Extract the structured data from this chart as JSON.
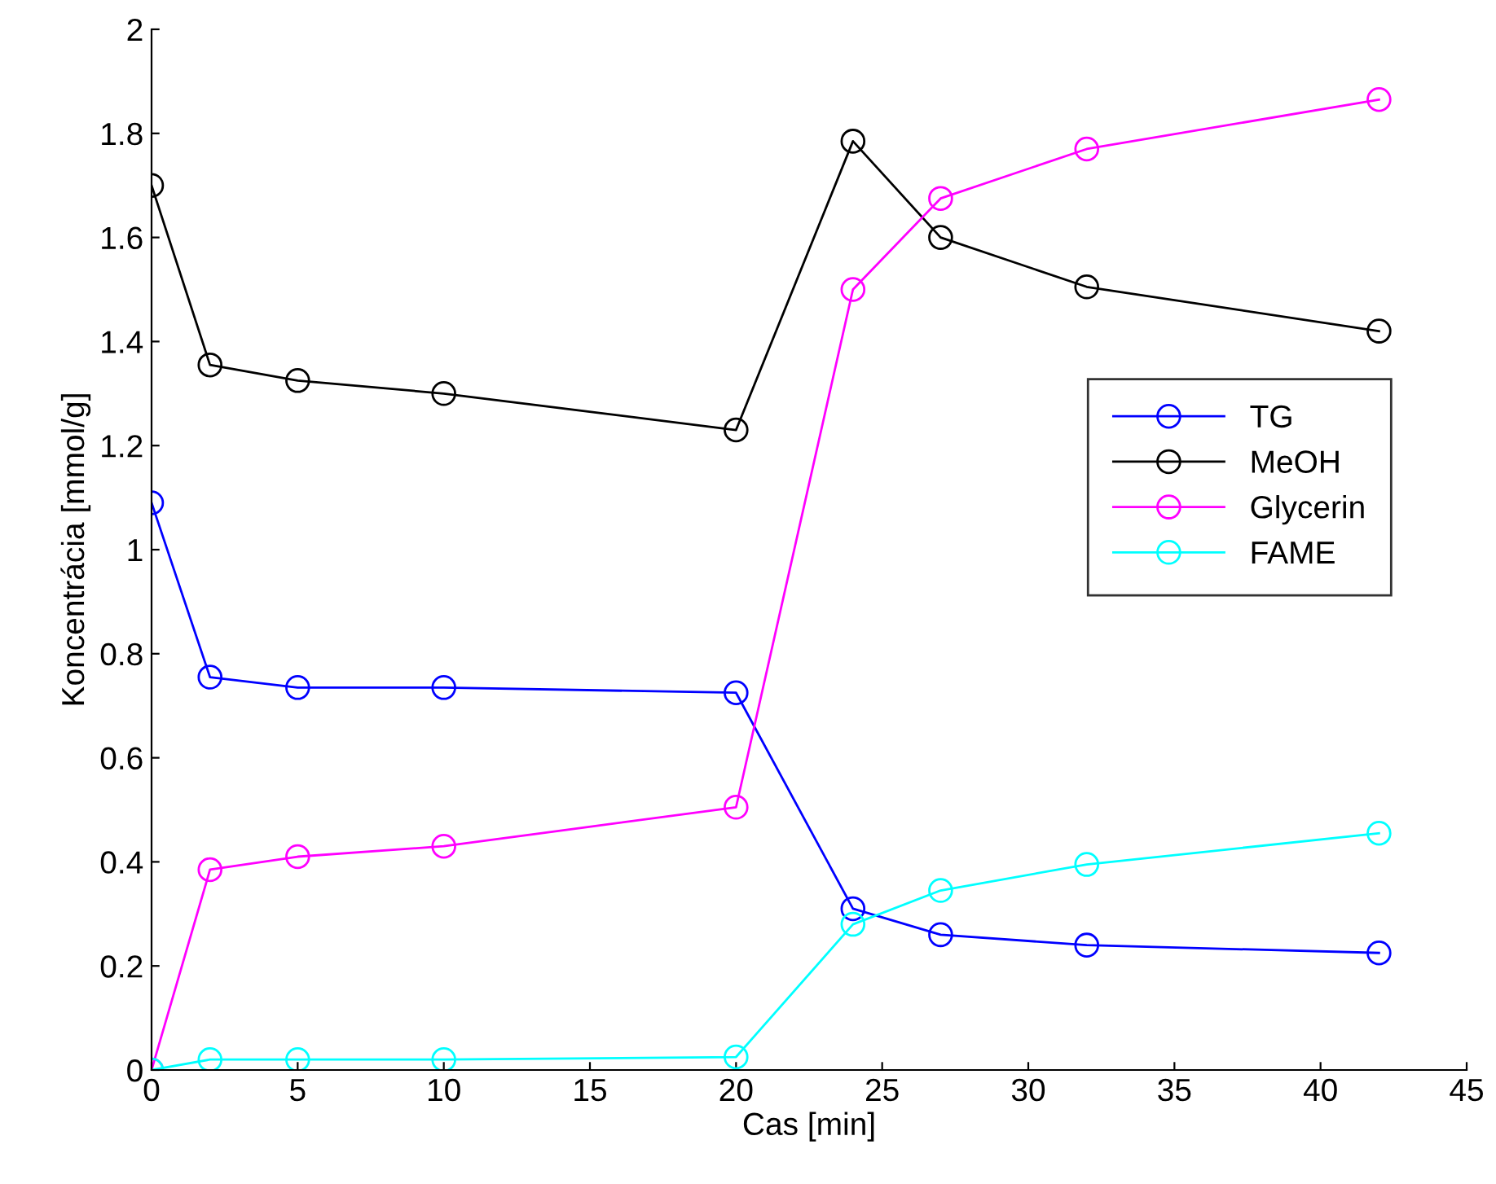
{
  "chart_data": {
    "type": "line",
    "xlabel": "Cas [min]",
    "ylabel": "Koncentrácia [mmol/g]",
    "x": [
      0,
      2,
      5,
      10,
      20,
      24,
      27,
      32,
      42
    ],
    "series": [
      {
        "name": "TG",
        "color": "#0000ff",
        "values": [
          1.09,
          0.755,
          0.735,
          0.735,
          0.725,
          0.31,
          0.26,
          0.24,
          0.225
        ]
      },
      {
        "name": "MeOH",
        "color": "#000000",
        "values": [
          1.7,
          1.355,
          1.325,
          1.3,
          1.23,
          1.785,
          1.6,
          1.505,
          1.42
        ]
      },
      {
        "name": "Glycerin",
        "color": "#ff00ff",
        "values": [
          0,
          0.385,
          0.41,
          0.43,
          0.505,
          1.5,
          1.675,
          1.77,
          1.865
        ]
      },
      {
        "name": "FAME",
        "color": "#00ffff",
        "values": [
          0,
          0.02,
          0.02,
          0.02,
          0.025,
          0.28,
          0.345,
          0.395,
          0.455
        ]
      }
    ],
    "xlim": [
      0,
      45
    ],
    "xticks": [
      0,
      5,
      10,
      15,
      20,
      25,
      30,
      35,
      40,
      45
    ],
    "ylim": [
      0,
      2
    ],
    "yticks": [
      0,
      0.2,
      0.4,
      0.6,
      0.8,
      1,
      1.2,
      1.4,
      1.6,
      1.8,
      2
    ],
    "marker": "circle",
    "line_style": "solid",
    "legend": "right",
    "grid": false
  }
}
